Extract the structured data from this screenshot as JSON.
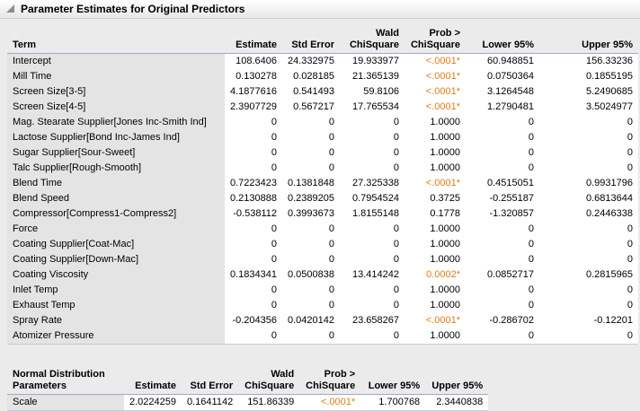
{
  "title": "Parameter Estimates for Original Predictors",
  "colors": {
    "significant": "#e17d13",
    "header_line": "#a3a8c9"
  },
  "main_table": {
    "headers": {
      "term": "Term",
      "estimate": "Estimate",
      "std_error": "Std Error",
      "wald": [
        "Wald",
        "ChiSquare"
      ],
      "prob": [
        "Prob >",
        "ChiSquare"
      ],
      "lower": "Lower 95%",
      "upper": "Upper 95%"
    },
    "rows": [
      {
        "term": "Intercept",
        "estimate": "108.6406",
        "std_error": "24.332975",
        "chisq": "19.933977",
        "prob": "<.0001*",
        "sig": true,
        "lower": "60.948851",
        "upper": "156.33236"
      },
      {
        "term": "Mill Time",
        "estimate": "0.130278",
        "std_error": "0.028185",
        "chisq": "21.365139",
        "prob": "<.0001*",
        "sig": true,
        "lower": "0.0750364",
        "upper": "0.1855195"
      },
      {
        "term": "Screen Size[3-5]",
        "estimate": "4.1877616",
        "std_error": "0.541493",
        "chisq": "59.8106",
        "prob": "<.0001*",
        "sig": true,
        "lower": "3.1264548",
        "upper": "5.2490685"
      },
      {
        "term": "Screen Size[4-5]",
        "estimate": "2.3907729",
        "std_error": "0.567217",
        "chisq": "17.765534",
        "prob": "<.0001*",
        "sig": true,
        "lower": "1.2790481",
        "upper": "3.5024977"
      },
      {
        "term": "Mag. Stearate Supplier[Jones Inc-Smith Ind]",
        "estimate": "0",
        "std_error": "0",
        "chisq": "0",
        "prob": "1.0000",
        "sig": false,
        "lower": "0",
        "upper": "0"
      },
      {
        "term": "Lactose Supplier[Bond Inc-James Ind]",
        "estimate": "0",
        "std_error": "0",
        "chisq": "0",
        "prob": "1.0000",
        "sig": false,
        "lower": "0",
        "upper": "0"
      },
      {
        "term": "Sugar Supplier[Sour-Sweet]",
        "estimate": "0",
        "std_error": "0",
        "chisq": "0",
        "prob": "1.0000",
        "sig": false,
        "lower": "0",
        "upper": "0"
      },
      {
        "term": "Talc Supplier[Rough-Smooth]",
        "estimate": "0",
        "std_error": "0",
        "chisq": "0",
        "prob": "1.0000",
        "sig": false,
        "lower": "0",
        "upper": "0"
      },
      {
        "term": "Blend Time",
        "estimate": "0.7223423",
        "std_error": "0.1381848",
        "chisq": "27.325338",
        "prob": "<.0001*",
        "sig": true,
        "lower": "0.4515051",
        "upper": "0.9931796"
      },
      {
        "term": "Blend Speed",
        "estimate": "0.2130888",
        "std_error": "0.2389205",
        "chisq": "0.7954524",
        "prob": "0.3725",
        "sig": false,
        "lower": "-0.255187",
        "upper": "0.6813644"
      },
      {
        "term": "Compressor[Compress1-Compress2]",
        "estimate": "-0.538112",
        "std_error": "0.3993673",
        "chisq": "1.8155148",
        "prob": "0.1778",
        "sig": false,
        "lower": "-1.320857",
        "upper": "0.2446338"
      },
      {
        "term": "Force",
        "estimate": "0",
        "std_error": "0",
        "chisq": "0",
        "prob": "1.0000",
        "sig": false,
        "lower": "0",
        "upper": "0"
      },
      {
        "term": "Coating Supplier[Coat-Mac]",
        "estimate": "0",
        "std_error": "0",
        "chisq": "0",
        "prob": "1.0000",
        "sig": false,
        "lower": "0",
        "upper": "0"
      },
      {
        "term": "Coating Supplier[Down-Mac]",
        "estimate": "0",
        "std_error": "0",
        "chisq": "0",
        "prob": "1.0000",
        "sig": false,
        "lower": "0",
        "upper": "0"
      },
      {
        "term": "Coating Viscosity",
        "estimate": "0.1834341",
        "std_error": "0.0500838",
        "chisq": "13.414242",
        "prob": "0.0002*",
        "sig": true,
        "lower": "0.0852717",
        "upper": "0.2815965"
      },
      {
        "term": "Inlet Temp",
        "estimate": "0",
        "std_error": "0",
        "chisq": "0",
        "prob": "1.0000",
        "sig": false,
        "lower": "0",
        "upper": "0"
      },
      {
        "term": "Exhaust Temp",
        "estimate": "0",
        "std_error": "0",
        "chisq": "0",
        "prob": "1.0000",
        "sig": false,
        "lower": "0",
        "upper": "0"
      },
      {
        "term": "Spray Rate",
        "estimate": "-0.204356",
        "std_error": "0.0420142",
        "chisq": "23.658267",
        "prob": "<.0001*",
        "sig": true,
        "lower": "-0.286702",
        "upper": "-0.12201"
      },
      {
        "term": "Atomizer Pressure",
        "estimate": "0",
        "std_error": "0",
        "chisq": "0",
        "prob": "1.0000",
        "sig": false,
        "lower": "0",
        "upper": "0"
      }
    ]
  },
  "scale_table": {
    "headers": {
      "term": [
        "Normal Distribution",
        "Parameters"
      ],
      "estimate": "Estimate",
      "std_error": "Std Error",
      "wald": [
        "Wald",
        "ChiSquare"
      ],
      "prob": [
        "Prob >",
        "ChiSquare"
      ],
      "lower": "Lower 95%",
      "upper": "Upper 95%"
    },
    "rows": [
      {
        "term": "Scale",
        "estimate": "2.0224259",
        "std_error": "0.1641142",
        "chisq": "151.86339",
        "prob": "<.0001*",
        "sig": true,
        "lower": "1.700768",
        "upper": "2.3440838"
      }
    ]
  }
}
